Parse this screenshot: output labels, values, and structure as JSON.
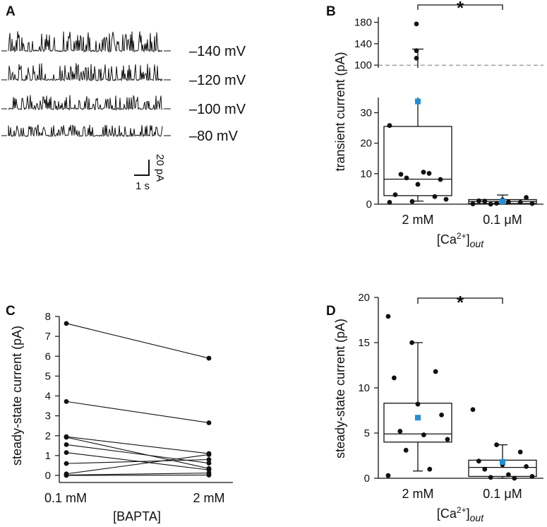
{
  "chart_data": [
    {
      "panel": "A",
      "type": "line",
      "title": "",
      "traces": [
        {
          "label": "–140 mV",
          "amplitude": 1.0
        },
        {
          "label": "–120 mV",
          "amplitude": 0.85
        },
        {
          "label": "–100 mV",
          "amplitude": 0.7
        },
        {
          "label": "–80 mV",
          "amplitude": 0.55
        }
      ],
      "scalebar": {
        "y_label": "20 pA",
        "x_label": "1 s",
        "y_value": 20,
        "x_value": 1
      }
    },
    {
      "panel": "B",
      "type": "box",
      "ylabel": "transient current (pA)",
      "xlabel_main": "[Ca",
      "xlabel_sup": "2+",
      "xlabel_close": "]",
      "xlabel_sub": "out",
      "lower_range": [
        0,
        35
      ],
      "upper_range": [
        95,
        190
      ],
      "lower_ticks": [
        0,
        10,
        20,
        30
      ],
      "upper_ticks": [
        100,
        140,
        180
      ],
      "reference_line": 100,
      "significance": "*",
      "categories": [
        {
          "label": "2 mM",
          "box": {
            "q1": 2.8,
            "median": 8.2,
            "q3": 25.5,
            "whisker_low": 1.0,
            "whisker_high": 130
          },
          "mean": 33.7,
          "points": [
            0.6,
            0.9,
            2.5,
            3.1,
            6.5,
            8.1,
            9.8,
            10.5,
            1.6,
            8.6,
            10.1,
            25.8,
            113,
            127,
            177
          ]
        },
        {
          "label": "0.1 μM",
          "box": {
            "q1": 0.2,
            "median": 0.9,
            "q3": 1.5,
            "whisker_low": 0.0,
            "whisker_high": 3.0
          },
          "mean": 0.9,
          "points": [
            0.1,
            0.3,
            0.6,
            1.1,
            1.4,
            2.2,
            1.0,
            0.7,
            0.2,
            0.0
          ]
        }
      ]
    },
    {
      "panel": "C",
      "type": "paired",
      "ylabel": "steady-state current (pA)",
      "xlabel": "[BAPTA]",
      "categories": [
        "0.1 mM",
        "2 mM"
      ],
      "ylim": [
        0,
        8
      ],
      "yticks": [
        0,
        1,
        2,
        3,
        4,
        5,
        6,
        7,
        8
      ],
      "pairs": [
        [
          7.65,
          5.9
        ],
        [
          3.72,
          2.65
        ],
        [
          1.95,
          1.1
        ],
        [
          1.92,
          0.35
        ],
        [
          1.55,
          0.62
        ],
        [
          1.15,
          0.28
        ],
        [
          0.6,
          0.8
        ],
        [
          0.08,
          1.05
        ],
        [
          0.02,
          0.12
        ],
        [
          0.0,
          0.02
        ]
      ]
    },
    {
      "panel": "D",
      "type": "box",
      "ylabel": "steady-state current (pA)",
      "xlabel_main": "[Ca",
      "xlabel_sup": "2+",
      "xlabel_close": "]",
      "xlabel_sub": "out",
      "ylim": [
        0,
        20
      ],
      "yticks": [
        0,
        5,
        10,
        15,
        20
      ],
      "significance": "*",
      "categories": [
        {
          "label": "2 mM",
          "box": {
            "q1": 4.0,
            "median": 4.9,
            "q3": 8.3,
            "whisker_low": 0.8,
            "whisker_high": 15.0
          },
          "mean": 6.7,
          "points": [
            17.9,
            15.0,
            11.8,
            11.1,
            8.2,
            7.0,
            5.2,
            4.8,
            4.3,
            3.1,
            1.0,
            0.3
          ]
        },
        {
          "label": "0.1 μM",
          "box": {
            "q1": 0.2,
            "median": 1.2,
            "q3": 2.0,
            "whisker_low": 0.0,
            "whisker_high": 3.7
          },
          "mean": 1.8,
          "points": [
            7.6,
            3.7,
            2.9,
            1.9,
            1.5,
            1.3,
            1.0,
            0.4,
            0.2,
            0.1,
            0.0
          ]
        }
      ]
    }
  ]
}
